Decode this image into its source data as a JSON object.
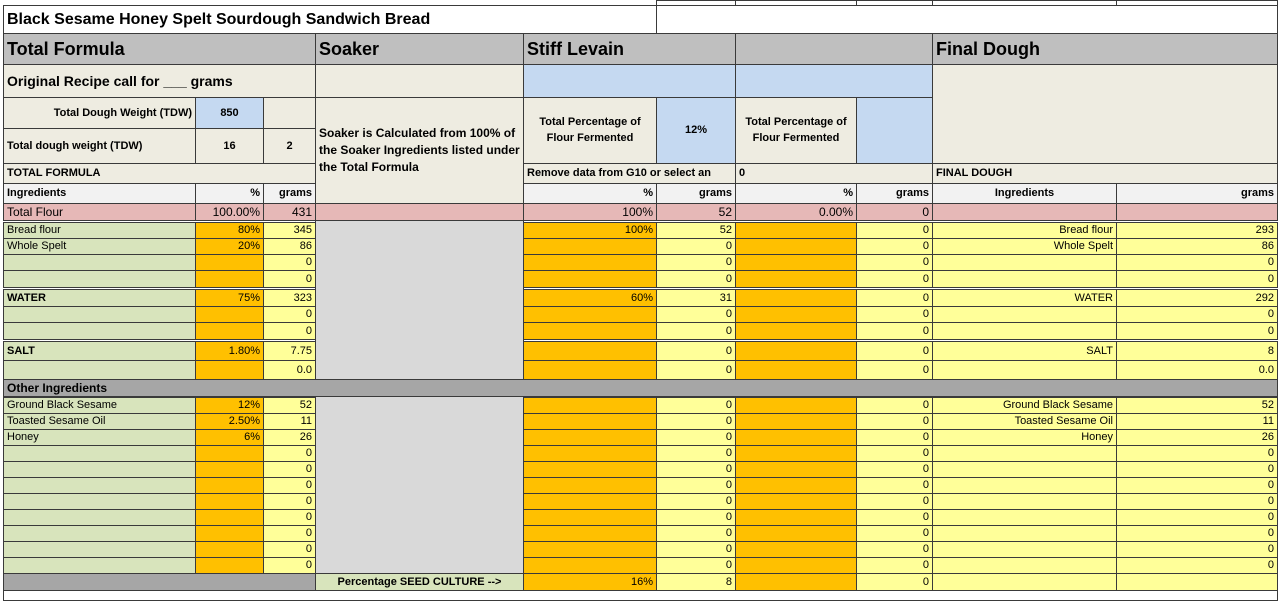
{
  "title": "Black Sesame Honey Spelt Sourdough Sandwich Bread",
  "headers": {
    "total_formula": "Total Formula",
    "soaker": "Soaker",
    "stiff_levain": "Stiff Levain",
    "final_dough": "Final Dough"
  },
  "original_recipe": "Original Recipe call for ___ grams",
  "tdw": {
    "label": "Total Dough Weight (TDW)",
    "value": 850
  },
  "tdw2": {
    "label": "Total dough weight (TDW)",
    "value": 16,
    "extra": 2
  },
  "soaker_note": "Soaker is Calculated from 100% of the Soaker Ingredients listed under the Total Formula",
  "levain_fermented": {
    "label": "Total Percentage of Flour Fermented",
    "value": "12%"
  },
  "stage3_fermented": {
    "label": "Total Percentage of Flour Fermented"
  },
  "total_formula_label": "TOTAL FORMULA",
  "levain_note": "Remove data from G10 or select an",
  "stage3_note": 0,
  "final_dough_label": "FINAL DOUGH",
  "column_headers": {
    "ingredient": "Ingredients",
    "percent": "%",
    "grams": "grams",
    "levain_percent": "%",
    "levain_grams": "grams",
    "stage3_percent": "%",
    "stage3_grams": "grams",
    "final_ingredient": "Ingredients",
    "final_grams": "grams"
  },
  "total_flour": {
    "ingredient": "Total Flour",
    "percent": "100.00%",
    "grams": 431,
    "levain_percent": "100%",
    "levain_grams": 52,
    "stage3_percent": "0.00%",
    "stage3_grams": 0
  },
  "rows": [
    {
      "ingredient": "Bread flour",
      "percent": "80%",
      "grams": 345,
      "levain_percent": "100%",
      "levain_grams": 52,
      "stage3_grams": 0,
      "final_ingredient": "Bread flour",
      "final_grams": 293
    },
    {
      "ingredient": "Whole Spelt",
      "percent": "20%",
      "grams": 86,
      "levain_grams": 0,
      "stage3_grams": 0,
      "final_ingredient": "Whole Spelt",
      "final_grams": 86
    },
    {
      "grams": 0,
      "levain_grams": 0,
      "stage3_grams": 0,
      "final_grams": 0
    },
    {
      "grams": 0,
      "levain_grams": 0,
      "stage3_grams": 0,
      "final_grams": 0
    },
    {
      "ingredient": "WATER",
      "percent": "75%",
      "grams": 323,
      "levain_percent": "60%",
      "levain_grams": 31,
      "stage3_grams": 0,
      "final_ingredient": "WATER",
      "final_grams": 292
    },
    {
      "grams": 0,
      "levain_grams": 0,
      "stage3_grams": 0,
      "final_grams": 0
    },
    {
      "grams": 0,
      "levain_grams": 0,
      "stage3_grams": 0,
      "final_grams": 0
    },
    {
      "ingredient": "SALT",
      "percent": "1.80%",
      "grams": 7.75,
      "levain_grams": 0,
      "stage3_grams": 0,
      "final_ingredient": "SALT",
      "final_grams": 8
    },
    {
      "grams": "0.0",
      "levain_grams": 0,
      "stage3_grams": 0,
      "final_grams": "0.0"
    },
    {
      "ingredient": "Ground Black Sesame",
      "percent": "12%",
      "grams": 52,
      "levain_grams": 0,
      "stage3_grams": 0,
      "final_ingredient": "Ground Black Sesame",
      "final_grams": 52
    },
    {
      "ingredient": "Toasted Sesame Oil",
      "percent": "2.50%",
      "grams": 11,
      "levain_grams": 0,
      "stage3_grams": 0,
      "final_ingredient": "Toasted Sesame Oil",
      "final_grams": 11
    },
    {
      "ingredient": "Honey",
      "percent": "6%",
      "grams": 26,
      "levain_grams": 0,
      "stage3_grams": 0,
      "final_ingredient": "Honey",
      "final_grams": 26
    },
    {
      "grams": 0,
      "levain_grams": 0,
      "stage3_grams": 0,
      "final_grams": 0
    },
    {
      "grams": 0,
      "levain_grams": 0,
      "stage3_grams": 0,
      "final_grams": 0
    },
    {
      "grams": 0,
      "levain_grams": 0,
      "stage3_grams": 0,
      "final_grams": 0
    },
    {
      "grams": 0,
      "levain_grams": 0,
      "stage3_grams": 0,
      "final_grams": 0
    },
    {
      "grams": 0,
      "levain_grams": 0,
      "stage3_grams": 0,
      "final_grams": 0
    },
    {
      "grams": 0,
      "levain_grams": 0,
      "stage3_grams": 0,
      "final_grams": 0
    },
    {
      "grams": 0,
      "levain_grams": 0,
      "stage3_grams": 0,
      "final_grams": 0
    },
    {
      "grams": 0,
      "levain_grams": 0,
      "stage3_grams": 0,
      "final_grams": 0
    }
  ],
  "other_ingredients": "Other Ingredients",
  "seed_culture": {
    "label": "Percentage SEED CULTURE -->",
    "levain_percent": "16%",
    "levain_grams": 8,
    "stage3_grams": 0
  }
}
